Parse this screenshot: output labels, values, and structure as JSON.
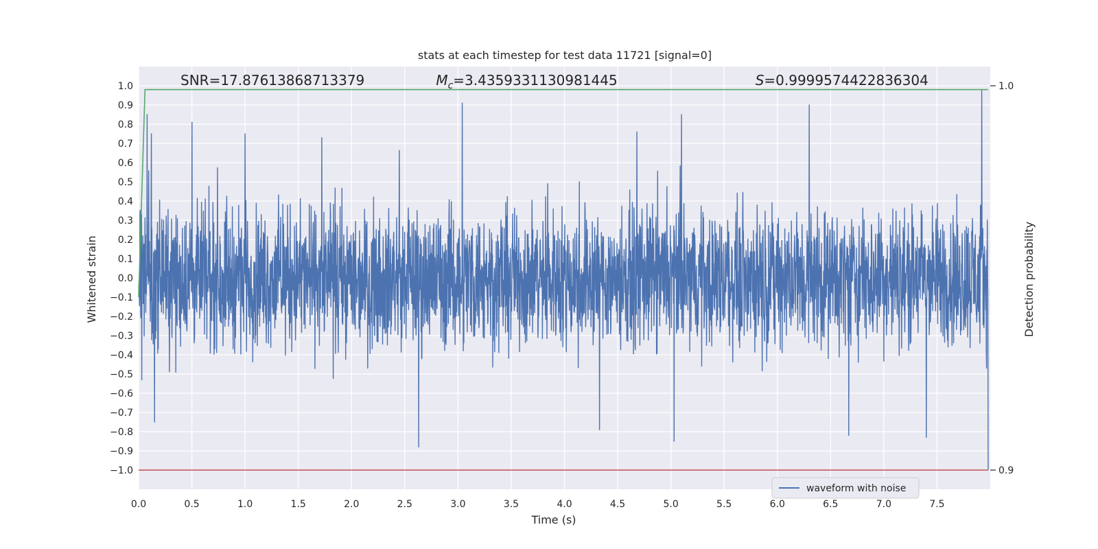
{
  "chart_data": {
    "type": "line",
    "title": "stats at each timestep for test data 11721 [signal=0]",
    "xlabel": "Time (s)",
    "ylabel": "Whitened strain",
    "y2label": "Detection probability",
    "xlim": [
      0,
      8.0
    ],
    "ylim": [
      -1.1,
      1.1
    ],
    "y2lim": [
      0.895,
      1.005
    ],
    "x_ticks": [
      0.0,
      0.5,
      1.0,
      1.5,
      2.0,
      2.5,
      3.0,
      3.5,
      4.0,
      4.5,
      5.0,
      5.5,
      6.0,
      6.5,
      7.0,
      7.5
    ],
    "x_tick_labels": [
      "0.0",
      "0.5",
      "1.0",
      "1.5",
      "2.0",
      "2.5",
      "3.0",
      "3.5",
      "4.0",
      "4.5",
      "5.0",
      "5.5",
      "6.0",
      "6.5",
      "7.0",
      "7.5"
    ],
    "y_ticks": [
      1.0,
      0.9,
      0.8,
      0.7,
      0.6,
      0.5,
      0.4,
      0.3,
      0.2,
      0.1,
      0.0,
      -0.1,
      -0.2,
      -0.3,
      -0.4,
      -0.5,
      -0.6,
      -0.7,
      -0.8,
      -0.9,
      -1.0
    ],
    "y_tick_labels": [
      "1.0",
      "0.9",
      "0.8",
      "0.7",
      "0.6",
      "0.5",
      "0.4",
      "0.3",
      "0.2",
      "0.1",
      "0.0",
      "−0.1",
      "−0.2",
      "−0.3",
      "−0.4",
      "−0.5",
      "−0.6",
      "−0.7",
      "−0.8",
      "−0.9",
      "−1.0"
    ],
    "y2_ticks": [
      1.0,
      0.9
    ],
    "y2_tick_labels": [
      "1.0",
      "0.9"
    ],
    "annotations": [
      {
        "label": "SNR=17.87613868713379",
        "x_data": 0.2
      },
      {
        "label": "Mc",
        "value_text": "=3.4359331130981445",
        "x_data": 2.6
      },
      {
        "label": "S",
        "value_text": "=0.9999574422836304",
        "x_data": 5.6
      }
    ],
    "series": [
      {
        "name": "waveform with noise",
        "color": "#4c72b0",
        "kind": "noise",
        "x_range": [
          0,
          7.98
        ],
        "typical_amplitude": 0.38,
        "spikes": [
          {
            "x": 0.08,
            "y": 0.85
          },
          {
            "x": 0.12,
            "y": 0.75
          },
          {
            "x": 0.5,
            "y": 0.81
          },
          {
            "x": 1.0,
            "y": 0.75
          },
          {
            "x": 1.72,
            "y": 0.73
          },
          {
            "x": 3.04,
            "y": 0.91
          },
          {
            "x": 4.68,
            "y": 0.76
          },
          {
            "x": 5.1,
            "y": 0.85
          },
          {
            "x": 6.3,
            "y": 0.9
          },
          {
            "x": 7.92,
            "y": 0.98
          },
          {
            "x": 0.15,
            "y": -0.75
          },
          {
            "x": 2.63,
            "y": -0.88
          },
          {
            "x": 4.33,
            "y": -0.79
          },
          {
            "x": 5.03,
            "y": -0.85
          },
          {
            "x": 6.67,
            "y": -0.82
          },
          {
            "x": 7.4,
            "y": -0.83
          },
          {
            "x": 7.98,
            "y": -1.0
          }
        ]
      },
      {
        "name": "",
        "color": "#55a868",
        "axis": "right",
        "x": [
          0.0,
          0.06,
          7.98
        ],
        "y": [
          0.945,
          0.999,
          0.999
        ]
      },
      {
        "name": "",
        "color": "#c44e52",
        "axis": "right",
        "x": [
          0.0,
          7.98
        ],
        "y": [
          0.9,
          0.9
        ]
      }
    ],
    "legend": {
      "placement": "lower-right",
      "entries": [
        "waveform with noise"
      ]
    },
    "grid": true,
    "background": "#eaeaf2"
  }
}
